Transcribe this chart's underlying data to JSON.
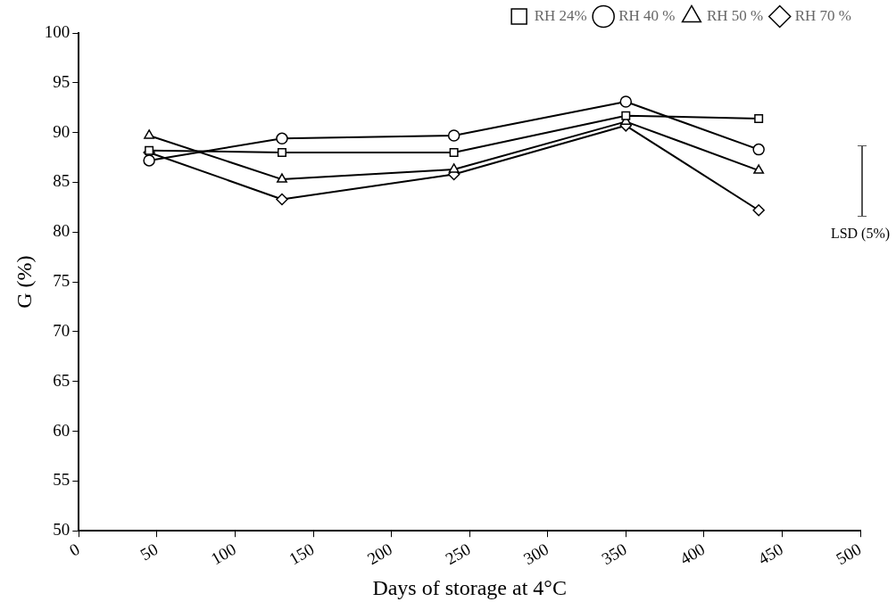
{
  "chart_data": {
    "type": "line",
    "xlabel": "Days of storage at 4°C",
    "ylabel": "G (%)",
    "xlim": [
      0,
      500
    ],
    "xticks": [
      0,
      50,
      100,
      150,
      200,
      250,
      300,
      350,
      400,
      450,
      500
    ],
    "ylim": [
      50,
      100
    ],
    "yticks": [
      50,
      55,
      60,
      65,
      70,
      75,
      80,
      85,
      90,
      95,
      100
    ],
    "grid": false,
    "legend": "top right",
    "line_style": "solid",
    "x": [
      45,
      130,
      240,
      350,
      435
    ],
    "series": [
      {
        "name": "RH 24%",
        "color": "#000000",
        "marker": "square",
        "values": [
          88.2,
          88.0,
          88.0,
          91.7,
          91.4
        ]
      },
      {
        "name": "RH 40 %",
        "color": "#000000",
        "marker": "circle",
        "values": [
          87.2,
          89.4,
          89.7,
          93.1,
          88.3
        ]
      },
      {
        "name": "RH 50 %",
        "color": "#000000",
        "marker": "triangle",
        "values": [
          89.7,
          85.3,
          86.3,
          91.1,
          86.2
        ]
      },
      {
        "name": "RH 70 %",
        "color": "#000000",
        "marker": "diamond",
        "values": [
          88.0,
          83.3,
          85.8,
          90.7,
          82.2
        ]
      }
    ],
    "annotations": [
      "LSD (5%)"
    ]
  }
}
